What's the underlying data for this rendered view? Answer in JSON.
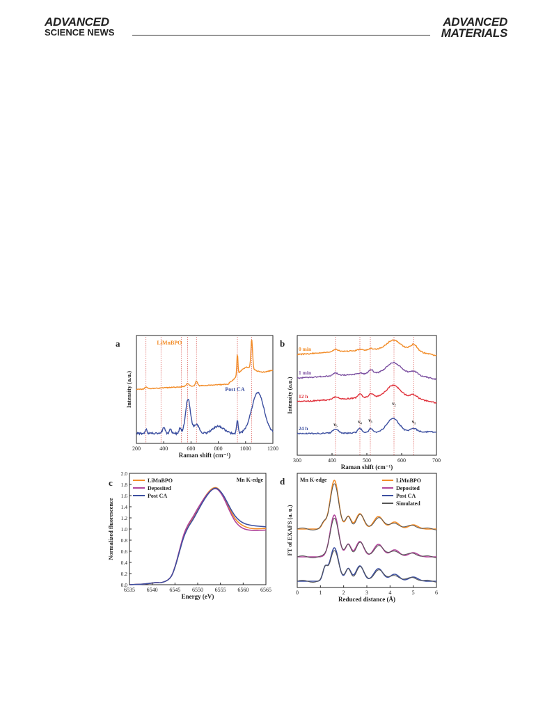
{
  "header": {
    "left_line1": "ADVANCED",
    "left_line2": "SCIENCE NEWS",
    "right_line1": "ADVANCED",
    "right_line2": "MATERIALS"
  },
  "colors": {
    "orange": "#F28C28",
    "purple": "#7B4FA0",
    "red": "#E0303A",
    "blue": "#3C4FA0",
    "magenta": "#B0449A",
    "dark": "#222222",
    "gray": "#555555",
    "refline": "#D9534F"
  },
  "chart_data": [
    {
      "panel": "a",
      "type": "line",
      "xlabel": "Raman shift (cm⁻¹)",
      "ylabel": "Intensity (a.u.)",
      "xlim": [
        200,
        1200
      ],
      "xticks": [
        "200",
        "400",
        "600",
        "800",
        "1000",
        "1200"
      ],
      "ref_lines": [
        270,
        380,
        530,
        575,
        640,
        940,
        1045
      ],
      "series": [
        {
          "name": "LiMnBPO",
          "color": "#F28C28",
          "label_x": 350,
          "label_y": 0.93
        },
        {
          "name": "Post CA",
          "color": "#3C4FA0",
          "label_x": 850,
          "label_y": 0.48
        }
      ]
    },
    {
      "panel": "b",
      "type": "line",
      "xlabel": "Raman shift (cm⁻¹)",
      "ylabel": "Intensity (a.u.)",
      "xlim": [
        300,
        700
      ],
      "xticks": [
        "300",
        "400",
        "500",
        "600",
        "700"
      ],
      "ref_lines": [
        410,
        480,
        510,
        578,
        635
      ],
      "series": [
        {
          "name": "0 min",
          "color": "#F28C28"
        },
        {
          "name": "1 min",
          "color": "#7B4FA0"
        },
        {
          "name": "12 h",
          "color": "#E0303A"
        },
        {
          "name": "24 h",
          "color": "#3C4FA0"
        }
      ],
      "annotations": [
        {
          "text": "ν₅",
          "x": 410
        },
        {
          "text": "ν₄",
          "x": 480
        },
        {
          "text": "ν₃",
          "x": 510
        },
        {
          "text": "ν₂",
          "x": 578
        },
        {
          "text": "ν₁",
          "x": 635
        }
      ]
    },
    {
      "panel": "c",
      "type": "line",
      "title": "Mn K-edge",
      "xlabel": "Energy (eV)",
      "ylabel": "Normalized fluorescence",
      "xlim": [
        6535,
        6565
      ],
      "ylim": [
        0.0,
        2.0
      ],
      "xticks": [
        "6535",
        "6540",
        "6545",
        "6550",
        "6555",
        "6560",
        "6565"
      ],
      "yticks": [
        "0.0",
        "0.2",
        "0.4",
        "0.6",
        "0.8",
        "1.0",
        "1.2",
        "1.4",
        "1.6",
        "1.8",
        "2.0"
      ],
      "legend": "top-left",
      "series": [
        {
          "name": "LiMnBPO",
          "color": "#F28C28",
          "x": [
            6535,
            6538,
            6540,
            6541,
            6542,
            6544,
            6545,
            6546,
            6547,
            6548,
            6549,
            6550,
            6551,
            6552,
            6553,
            6553.8,
            6554.5,
            6555.5,
            6556.5,
            6557.5,
            6558.5,
            6560,
            6562,
            6565
          ],
          "y": [
            0.0,
            0.01,
            0.03,
            0.04,
            0.03,
            0.1,
            0.3,
            0.6,
            0.9,
            1.08,
            1.2,
            1.35,
            1.5,
            1.63,
            1.72,
            1.75,
            1.73,
            1.62,
            1.45,
            1.28,
            1.15,
            1.05,
            1.0,
            1.01
          ]
        },
        {
          "name": "Deposited",
          "color": "#B0449A",
          "x": [
            6535,
            6538,
            6540,
            6541,
            6542,
            6544,
            6545,
            6546,
            6547,
            6548,
            6549,
            6550,
            6551,
            6552,
            6553,
            6553.8,
            6554.5,
            6555.5,
            6556.5,
            6557.5,
            6558.5,
            6560,
            6562,
            6565
          ],
          "y": [
            0.0,
            0.01,
            0.03,
            0.04,
            0.03,
            0.1,
            0.31,
            0.62,
            0.93,
            1.1,
            1.22,
            1.37,
            1.5,
            1.62,
            1.7,
            1.73,
            1.71,
            1.6,
            1.42,
            1.24,
            1.1,
            1.0,
            0.97,
            0.98
          ]
        },
        {
          "name": "Post CA",
          "color": "#3C4FA0",
          "x": [
            6535,
            6538,
            6540,
            6541,
            6542,
            6544,
            6545,
            6546,
            6547,
            6548,
            6549,
            6550,
            6551,
            6552,
            6553,
            6553.8,
            6554.5,
            6555.5,
            6556.5,
            6557.5,
            6558.5,
            6560,
            6562,
            6565
          ],
          "y": [
            0.0,
            0.01,
            0.03,
            0.04,
            0.03,
            0.1,
            0.3,
            0.6,
            0.88,
            1.05,
            1.17,
            1.32,
            1.47,
            1.6,
            1.7,
            1.74,
            1.72,
            1.63,
            1.48,
            1.32,
            1.2,
            1.1,
            1.06,
            1.04
          ]
        }
      ]
    },
    {
      "panel": "d",
      "type": "line",
      "title": "Mn K-edge",
      "xlabel": "Reduced distance (Å)",
      "ylabel": "FT of EXAFS (a. u.)",
      "xlim": [
        0,
        6
      ],
      "xticks": [
        "0",
        "1",
        "2",
        "3",
        "4",
        "5",
        "6"
      ],
      "legend": "top-right",
      "series": [
        {
          "name": "LiMnBPO",
          "color": "#F28C28"
        },
        {
          "name": "Deposited",
          "color": "#B0449A"
        },
        {
          "name": "Post CA",
          "color": "#3C4FA0"
        },
        {
          "name": "Simulated",
          "color": "#555555"
        }
      ]
    }
  ],
  "panel_labels": [
    "a",
    "b",
    "c",
    "d"
  ]
}
